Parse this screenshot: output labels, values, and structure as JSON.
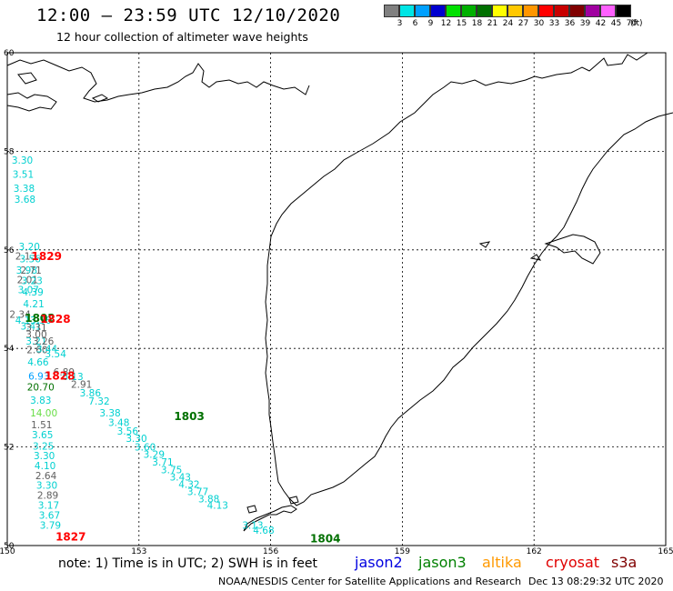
{
  "header": {
    "title": "12:00 – 23:59 UTC 12/10/2020",
    "subtitle": "12 hour collection of altimeter wave heights"
  },
  "legend": {
    "unit": "(ft)",
    "bins": [
      {
        "label": "3",
        "color": "#808080"
      },
      {
        "label": "6",
        "color": "#00e5e5"
      },
      {
        "label": "9",
        "color": "#00a0ff"
      },
      {
        "label": "12",
        "color": "#0000d0"
      },
      {
        "label": "15",
        "color": "#00e000"
      },
      {
        "label": "18",
        "color": "#00b000"
      },
      {
        "label": "21",
        "color": "#007000"
      },
      {
        "label": "24",
        "color": "#ffff00"
      },
      {
        "label": "27",
        "color": "#ffc800"
      },
      {
        "label": "30",
        "color": "#ff9600"
      },
      {
        "label": "33",
        "color": "#ff0000"
      },
      {
        "label": "36",
        "color": "#c80000"
      },
      {
        "label": "39",
        "color": "#800000"
      },
      {
        "label": "42",
        "color": "#a000a0"
      },
      {
        "label": "45",
        "color": "#ff60ff"
      },
      {
        "label": "70",
        "color": "#000000"
      }
    ]
  },
  "axes": {
    "lat_labels": [
      "60",
      "58",
      "56",
      "54",
      "52",
      "50"
    ],
    "lon_labels": [
      "150",
      "153",
      "156",
      "159",
      "162",
      "165"
    ]
  },
  "passes": [
    {
      "label": "1829",
      "lat": 55.79,
      "lon": 150.55,
      "color": "#ff0000"
    },
    {
      "label": "1802",
      "lat": 54.54,
      "lon": 150.4,
      "color": "#007000"
    },
    {
      "label": "1828",
      "lat": 54.52,
      "lon": 150.75,
      "color": "#ff0000"
    },
    {
      "label": "1828",
      "lat": 53.37,
      "lon": 150.85,
      "color": "#ff0000"
    },
    {
      "label": "1803",
      "lat": 52.55,
      "lon": 153.8,
      "color": "#007000"
    },
    {
      "label": "1827",
      "lat": 50.1,
      "lon": 151.1,
      "color": "#ff0000"
    },
    {
      "label": "1804",
      "lat": 50.06,
      "lon": 156.9,
      "color": "#007000"
    }
  ],
  "observations": [
    {
      "value": "3.30",
      "lat": 57.75,
      "lon": 150.1,
      "color": "#00d0d0"
    },
    {
      "value": "3.51",
      "lat": 57.46,
      "lon": 150.12,
      "color": "#00d0d0"
    },
    {
      "value": "3.38",
      "lat": 57.18,
      "lon": 150.14,
      "color": "#00d0d0"
    },
    {
      "value": "3.68",
      "lat": 56.96,
      "lon": 150.16,
      "color": "#00d0d0"
    },
    {
      "value": "2.13",
      "lat": 55.8,
      "lon": 150.18,
      "color": "#606060"
    },
    {
      "value": "3.98",
      "lat": 55.52,
      "lon": 150.2,
      "color": "#00d0d0"
    },
    {
      "value": "2.01",
      "lat": 55.32,
      "lon": 150.22,
      "color": "#606060"
    },
    {
      "value": "3.07",
      "lat": 55.12,
      "lon": 150.24,
      "color": "#00d0d0"
    },
    {
      "value": "3.20",
      "lat": 56.0,
      "lon": 150.26,
      "color": "#00d0d0"
    },
    {
      "value": "3.56",
      "lat": 55.75,
      "lon": 150.28,
      "color": "#00d0d0"
    },
    {
      "value": "2.71",
      "lat": 55.52,
      "lon": 150.3,
      "color": "#606060"
    },
    {
      "value": "3.23",
      "lat": 55.3,
      "lon": 150.32,
      "color": "#00d0d0"
    },
    {
      "value": "4.39",
      "lat": 55.07,
      "lon": 150.34,
      "color": "#00d0d0"
    },
    {
      "value": "4.21",
      "lat": 54.83,
      "lon": 150.36,
      "color": "#00d0d0"
    },
    {
      "value": "2.34",
      "lat": 54.62,
      "lon": 150.05,
      "color": "#606060"
    },
    {
      "value": "4.13",
      "lat": 54.5,
      "lon": 150.18,
      "color": "#00d0d0"
    },
    {
      "value": "3.56",
      "lat": 54.5,
      "lon": 150.52,
      "color": "#00d0d0"
    },
    {
      "value": "3.41",
      "lat": 54.38,
      "lon": 150.3,
      "color": "#00d0d0"
    },
    {
      "value": "3.31",
      "lat": 54.35,
      "lon": 150.42,
      "color": "#606060"
    },
    {
      "value": "3.00",
      "lat": 54.22,
      "lon": 150.42,
      "color": "#606060"
    },
    {
      "value": "3.21",
      "lat": 54.08,
      "lon": 150.42,
      "color": "#00d0d0"
    },
    {
      "value": "3.26",
      "lat": 54.08,
      "lon": 150.58,
      "color": "#606060"
    },
    {
      "value": "2.60",
      "lat": 53.9,
      "lon": 150.44,
      "color": "#606060"
    },
    {
      "value": "3.44",
      "lat": 53.92,
      "lon": 150.66,
      "color": "#00d0d0"
    },
    {
      "value": "3.54",
      "lat": 53.82,
      "lon": 150.86,
      "color": "#00d0d0"
    },
    {
      "value": "4.66",
      "lat": 53.65,
      "lon": 150.46,
      "color": "#00d0d0"
    },
    {
      "value": "6.93",
      "lat": 53.37,
      "lon": 150.48,
      "color": "#00a0ff"
    },
    {
      "value": "6.89",
      "lat": 53.45,
      "lon": 151.05,
      "color": "#606060"
    },
    {
      "value": "6.13",
      "lat": 53.36,
      "lon": 151.25,
      "color": "#00d0d0"
    },
    {
      "value": "2.91",
      "lat": 53.2,
      "lon": 151.45,
      "color": "#606060"
    },
    {
      "value": "20.70",
      "lat": 53.15,
      "lon": 150.45,
      "color": "#007000"
    },
    {
      "value": "3.86",
      "lat": 53.03,
      "lon": 151.65,
      "color": "#00d0d0"
    },
    {
      "value": "7.32",
      "lat": 52.86,
      "lon": 151.85,
      "color": "#00d0d0"
    },
    {
      "value": "3.83",
      "lat": 52.88,
      "lon": 150.52,
      "color": "#00d0d0"
    },
    {
      "value": "14.00",
      "lat": 52.62,
      "lon": 150.52,
      "color": "#66dd44"
    },
    {
      "value": "3.38",
      "lat": 52.62,
      "lon": 152.1,
      "color": "#00d0d0"
    },
    {
      "value": "3.48",
      "lat": 52.43,
      "lon": 152.3,
      "color": "#00d0d0"
    },
    {
      "value": "1.51",
      "lat": 52.38,
      "lon": 150.54,
      "color": "#606060"
    },
    {
      "value": "3.56",
      "lat": 52.25,
      "lon": 152.5,
      "color": "#00d0d0"
    },
    {
      "value": "3.65",
      "lat": 52.18,
      "lon": 150.56,
      "color": "#00d0d0"
    },
    {
      "value": "3.30",
      "lat": 52.1,
      "lon": 152.7,
      "color": "#00d0d0"
    },
    {
      "value": "3.25",
      "lat": 51.95,
      "lon": 150.58,
      "color": "#00d0d0"
    },
    {
      "value": "3.60",
      "lat": 51.93,
      "lon": 152.9,
      "color": "#00d0d0"
    },
    {
      "value": "3.30",
      "lat": 51.75,
      "lon": 150.6,
      "color": "#00d0d0"
    },
    {
      "value": "3.29",
      "lat": 51.78,
      "lon": 153.1,
      "color": "#00d0d0"
    },
    {
      "value": "3.71",
      "lat": 51.62,
      "lon": 153.3,
      "color": "#00d0d0"
    },
    {
      "value": "4.10",
      "lat": 51.55,
      "lon": 150.62,
      "color": "#00d0d0"
    },
    {
      "value": "3.75",
      "lat": 51.47,
      "lon": 153.5,
      "color": "#00d0d0"
    },
    {
      "value": "3.43",
      "lat": 51.32,
      "lon": 153.7,
      "color": "#00d0d0"
    },
    {
      "value": "2.64",
      "lat": 51.35,
      "lon": 150.64,
      "color": "#606060"
    },
    {
      "value": "4.32",
      "lat": 51.17,
      "lon": 153.9,
      "color": "#00d0d0"
    },
    {
      "value": "3.30",
      "lat": 51.15,
      "lon": 150.66,
      "color": "#00d0d0"
    },
    {
      "value": "3.77",
      "lat": 51.02,
      "lon": 154.1,
      "color": "#00d0d0"
    },
    {
      "value": "2.89",
      "lat": 50.95,
      "lon": 150.68,
      "color": "#606060"
    },
    {
      "value": "3.88",
      "lat": 50.88,
      "lon": 154.35,
      "color": "#00d0d0"
    },
    {
      "value": "4.13",
      "lat": 50.75,
      "lon": 154.55,
      "color": "#00d0d0"
    },
    {
      "value": "3.17",
      "lat": 50.75,
      "lon": 150.7,
      "color": "#00d0d0"
    },
    {
      "value": "3.67",
      "lat": 50.54,
      "lon": 150.72,
      "color": "#00d0d0"
    },
    {
      "value": "3.13",
      "lat": 50.34,
      "lon": 155.35,
      "color": "#00d0d0"
    },
    {
      "value": "3.79",
      "lat": 50.34,
      "lon": 150.74,
      "color": "#00d0d0"
    },
    {
      "value": "4.68",
      "lat": 50.24,
      "lon": 155.6,
      "color": "#00d0d0"
    }
  ],
  "note": "note: 1) Time is in UTC; 2) SWH is in feet",
  "satellites": [
    {
      "name": "jason2",
      "color": "#0000e0"
    },
    {
      "name": "jason3",
      "color": "#008000"
    },
    {
      "name": "altika",
      "color": "#ff9900"
    },
    {
      "name": "cryosat",
      "color": "#e00000"
    },
    {
      "name": "s3a",
      "color": "#800000"
    }
  ],
  "footer": {
    "credit": "NOAA/NESDIS Center for Satellite Applications and Research",
    "timestamp": "Dec 13 08:29:32 UTC 2020"
  }
}
